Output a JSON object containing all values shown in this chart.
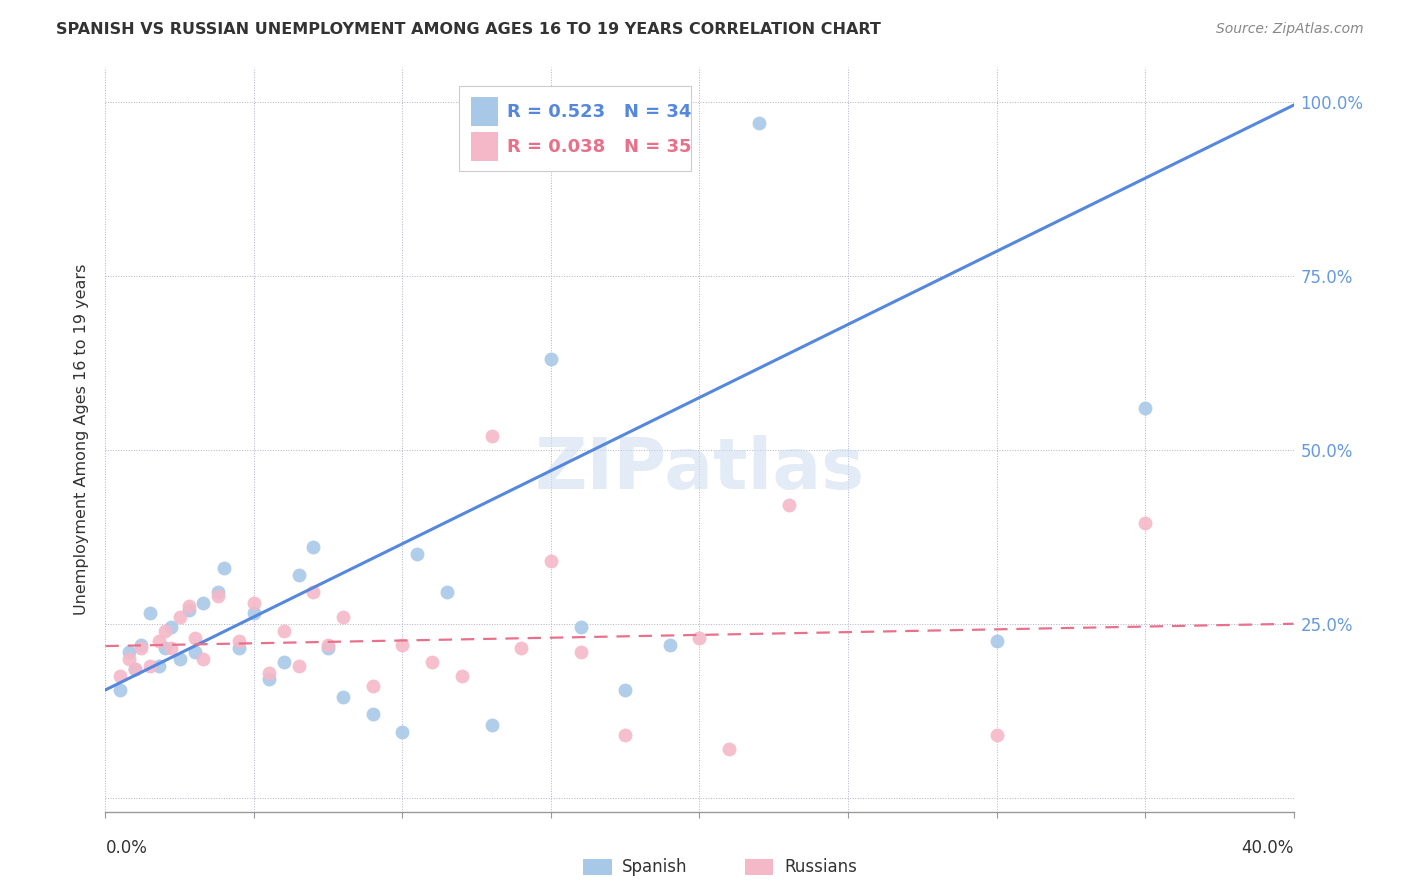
{
  "title": "SPANISH VS RUSSIAN UNEMPLOYMENT AMONG AGES 16 TO 19 YEARS CORRELATION CHART",
  "source": "Source: ZipAtlas.com",
  "ylabel": "Unemployment Among Ages 16 to 19 years",
  "xlim": [
    0.0,
    0.4
  ],
  "ylim": [
    -0.02,
    1.05
  ],
  "yticks": [
    0.0,
    0.25,
    0.5,
    0.75,
    1.0
  ],
  "ytick_labels": [
    "",
    "25.0%",
    "50.0%",
    "75.0%",
    "100.0%"
  ],
  "xtick_positions": [
    0.0,
    0.05,
    0.1,
    0.15,
    0.2,
    0.25,
    0.3,
    0.35,
    0.4
  ],
  "spanish_color": "#a8c8e8",
  "russian_color": "#f5b8c8",
  "regression_spanish_color": "#5588dd",
  "regression_russian_color": "#e8708a",
  "watermark": "ZIPatlas",
  "legend_r_spanish": "R = 0.523",
  "legend_n_spanish": "N = 34",
  "legend_r_russian": "R = 0.038",
  "legend_n_russian": "N = 35",
  "spanish_x": [
    0.005,
    0.008,
    0.01,
    0.012,
    0.015,
    0.018,
    0.02,
    0.022,
    0.025,
    0.028,
    0.03,
    0.033,
    0.038,
    0.04,
    0.045,
    0.05,
    0.055,
    0.06,
    0.065,
    0.07,
    0.075,
    0.08,
    0.09,
    0.1,
    0.105,
    0.115,
    0.13,
    0.15,
    0.16,
    0.175,
    0.19,
    0.22,
    0.3,
    0.35
  ],
  "spanish_y": [
    0.155,
    0.21,
    0.185,
    0.22,
    0.265,
    0.19,
    0.215,
    0.245,
    0.2,
    0.27,
    0.21,
    0.28,
    0.295,
    0.33,
    0.215,
    0.265,
    0.17,
    0.195,
    0.32,
    0.36,
    0.215,
    0.145,
    0.12,
    0.095,
    0.35,
    0.295,
    0.105,
    0.63,
    0.245,
    0.155,
    0.22,
    0.97,
    0.225,
    0.56
  ],
  "russian_x": [
    0.005,
    0.008,
    0.01,
    0.012,
    0.015,
    0.018,
    0.02,
    0.022,
    0.025,
    0.028,
    0.03,
    0.033,
    0.038,
    0.045,
    0.05,
    0.055,
    0.06,
    0.065,
    0.07,
    0.075,
    0.08,
    0.09,
    0.1,
    0.11,
    0.12,
    0.13,
    0.14,
    0.15,
    0.16,
    0.175,
    0.2,
    0.21,
    0.23,
    0.3,
    0.35
  ],
  "russian_y": [
    0.175,
    0.2,
    0.185,
    0.215,
    0.19,
    0.225,
    0.24,
    0.215,
    0.26,
    0.275,
    0.23,
    0.2,
    0.29,
    0.225,
    0.28,
    0.18,
    0.24,
    0.19,
    0.295,
    0.22,
    0.26,
    0.16,
    0.22,
    0.195,
    0.175,
    0.52,
    0.215,
    0.34,
    0.21,
    0.09,
    0.23,
    0.07,
    0.42,
    0.09,
    0.395
  ],
  "sp_slope": 2.1,
  "sp_intercept": 0.155,
  "ru_slope": 0.08,
  "ru_intercept": 0.218
}
